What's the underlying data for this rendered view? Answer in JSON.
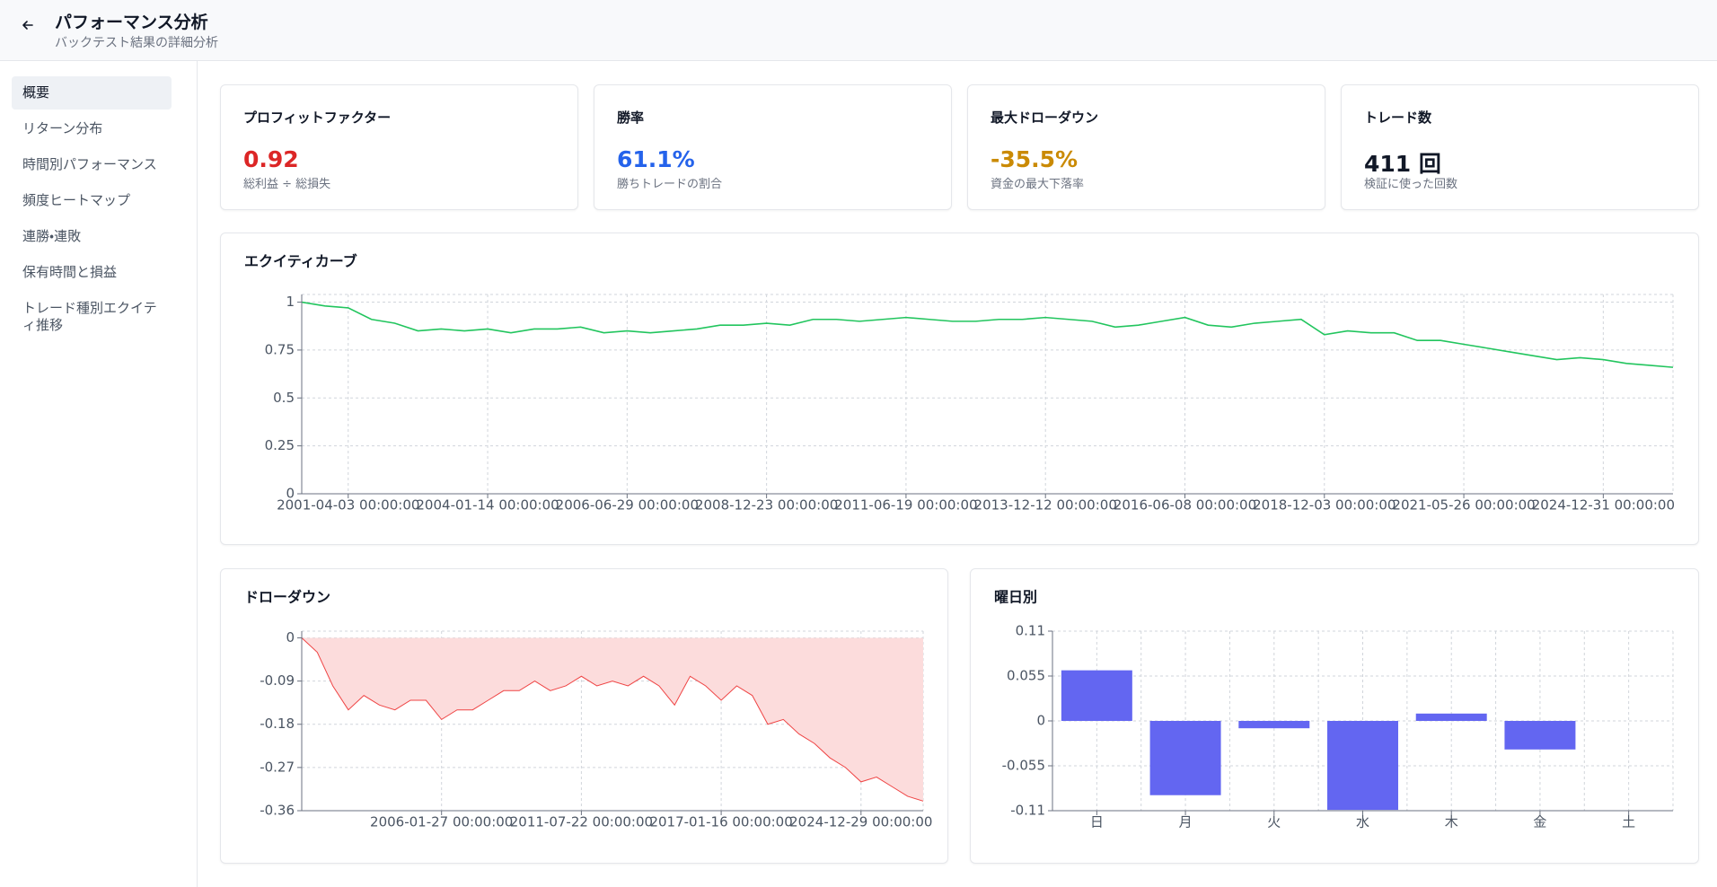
{
  "header": {
    "title": "パフォーマンス分析",
    "subtitle": "バックテスト結果の詳細分析"
  },
  "sidebar": {
    "items": [
      "概要",
      "リターン分布",
      "時間別パフォーマンス",
      "頻度ヒートマップ",
      "連勝・連敗",
      "保有時間と損益",
      "トレード種別エクイティ推移"
    ],
    "active": 0
  },
  "cards": [
    {
      "title": "プロフィットファクター",
      "value": "0.92",
      "subtitle": "総利益 ÷ 総損失",
      "color": "#dc2626"
    },
    {
      "title": "勝率",
      "value": "61.1%",
      "subtitle": "勝ちトレードの割合",
      "color": "#2563eb"
    },
    {
      "title": "最大ドローダウン",
      "value": "-35.5%",
      "subtitle": "資金の最大下落率",
      "color": "#ca8a04"
    },
    {
      "title": "トレード数",
      "value": "411 回",
      "subtitle": "検証に使った回数",
      "color": "#111827"
    }
  ],
  "chart_data": [
    {
      "type": "line",
      "title": "エクイティカーブ",
      "color": "#22c55e",
      "grid": true,
      "categories": [
        null,
        null,
        "2001-04-03 00:00:00",
        null,
        null,
        null,
        null,
        null,
        "2004-01-14 00:00:00",
        null,
        null,
        null,
        null,
        null,
        "2006-06-29 00:00:00",
        null,
        null,
        null,
        null,
        null,
        "2008-12-23 00:00:00",
        null,
        null,
        null,
        null,
        null,
        "2011-06-19 00:00:00",
        null,
        null,
        null,
        null,
        null,
        "2013-12-12 00:00:00",
        null,
        null,
        null,
        null,
        null,
        "2016-06-08 00:00:00",
        null,
        null,
        null,
        null,
        null,
        "2018-12-03 00:00:00",
        null,
        null,
        null,
        null,
        null,
        "2021-05-26 00:00:00",
        null,
        null,
        null,
        null,
        null,
        "2024-12-31 00:00:00",
        null,
        null,
        null
      ],
      "values": [
        1.0,
        0.98,
        0.97,
        0.91,
        0.89,
        0.85,
        0.86,
        0.85,
        0.86,
        0.84,
        0.86,
        0.86,
        0.87,
        0.84,
        0.85,
        0.84,
        0.85,
        0.86,
        0.88,
        0.88,
        0.89,
        0.88,
        0.91,
        0.91,
        0.9,
        0.91,
        0.92,
        0.91,
        0.9,
        0.9,
        0.91,
        0.91,
        0.92,
        0.91,
        0.9,
        0.87,
        0.88,
        0.9,
        0.92,
        0.88,
        0.87,
        0.89,
        0.9,
        0.91,
        0.83,
        0.85,
        0.84,
        0.84,
        0.8,
        0.8,
        0.78,
        0.76,
        0.74,
        0.72,
        0.7,
        0.71,
        0.7,
        0.68,
        0.67,
        0.66
      ],
      "ylim": [
        0,
        1.04
      ],
      "yticks": [
        0,
        0.25,
        0.5,
        0.75,
        1
      ]
    },
    {
      "type": "area",
      "title": "ドローダウン",
      "color": "#ef4444",
      "fill": "#fcdcdc",
      "grid": true,
      "categories": [
        null,
        null,
        null,
        null,
        null,
        null,
        null,
        null,
        null,
        "2006-01-27 00:00:00",
        null,
        null,
        null,
        null,
        null,
        null,
        null,
        null,
        "2011-07-22 00:00:00",
        null,
        null,
        null,
        null,
        null,
        null,
        null,
        null,
        "2017-01-16 00:00:00",
        null,
        null,
        null,
        null,
        null,
        null,
        null,
        null,
        "2024-12-29 00:00:00",
        null,
        null,
        null,
        null
      ],
      "values": [
        0,
        -0.03,
        -0.1,
        -0.15,
        -0.12,
        -0.14,
        -0.15,
        -0.13,
        -0.13,
        -0.17,
        -0.15,
        -0.15,
        -0.13,
        -0.11,
        -0.11,
        -0.09,
        -0.11,
        -0.1,
        -0.08,
        -0.1,
        -0.09,
        -0.1,
        -0.08,
        -0.1,
        -0.14,
        -0.08,
        -0.1,
        -0.13,
        -0.1,
        -0.12,
        -0.18,
        -0.17,
        -0.2,
        -0.22,
        -0.25,
        -0.27,
        -0.3,
        -0.29,
        -0.31,
        -0.33,
        -0.34
      ],
      "ylim": [
        -0.36,
        0.014
      ],
      "yticks": [
        0,
        -0.09,
        -0.18,
        -0.27,
        -0.36
      ]
    },
    {
      "type": "bar",
      "title": "曜日別",
      "color": "#6366f1",
      "grid": true,
      "categories": [
        "日",
        "月",
        "火",
        "水",
        "木",
        "金",
        "土"
      ],
      "values": [
        0.062,
        -0.091,
        -0.009,
        -0.109,
        0.009,
        -0.035,
        0
      ],
      "ylim": [
        -0.11,
        0.11
      ],
      "yticks": [
        0.11,
        0.055,
        0,
        -0.055,
        -0.11
      ]
    }
  ]
}
